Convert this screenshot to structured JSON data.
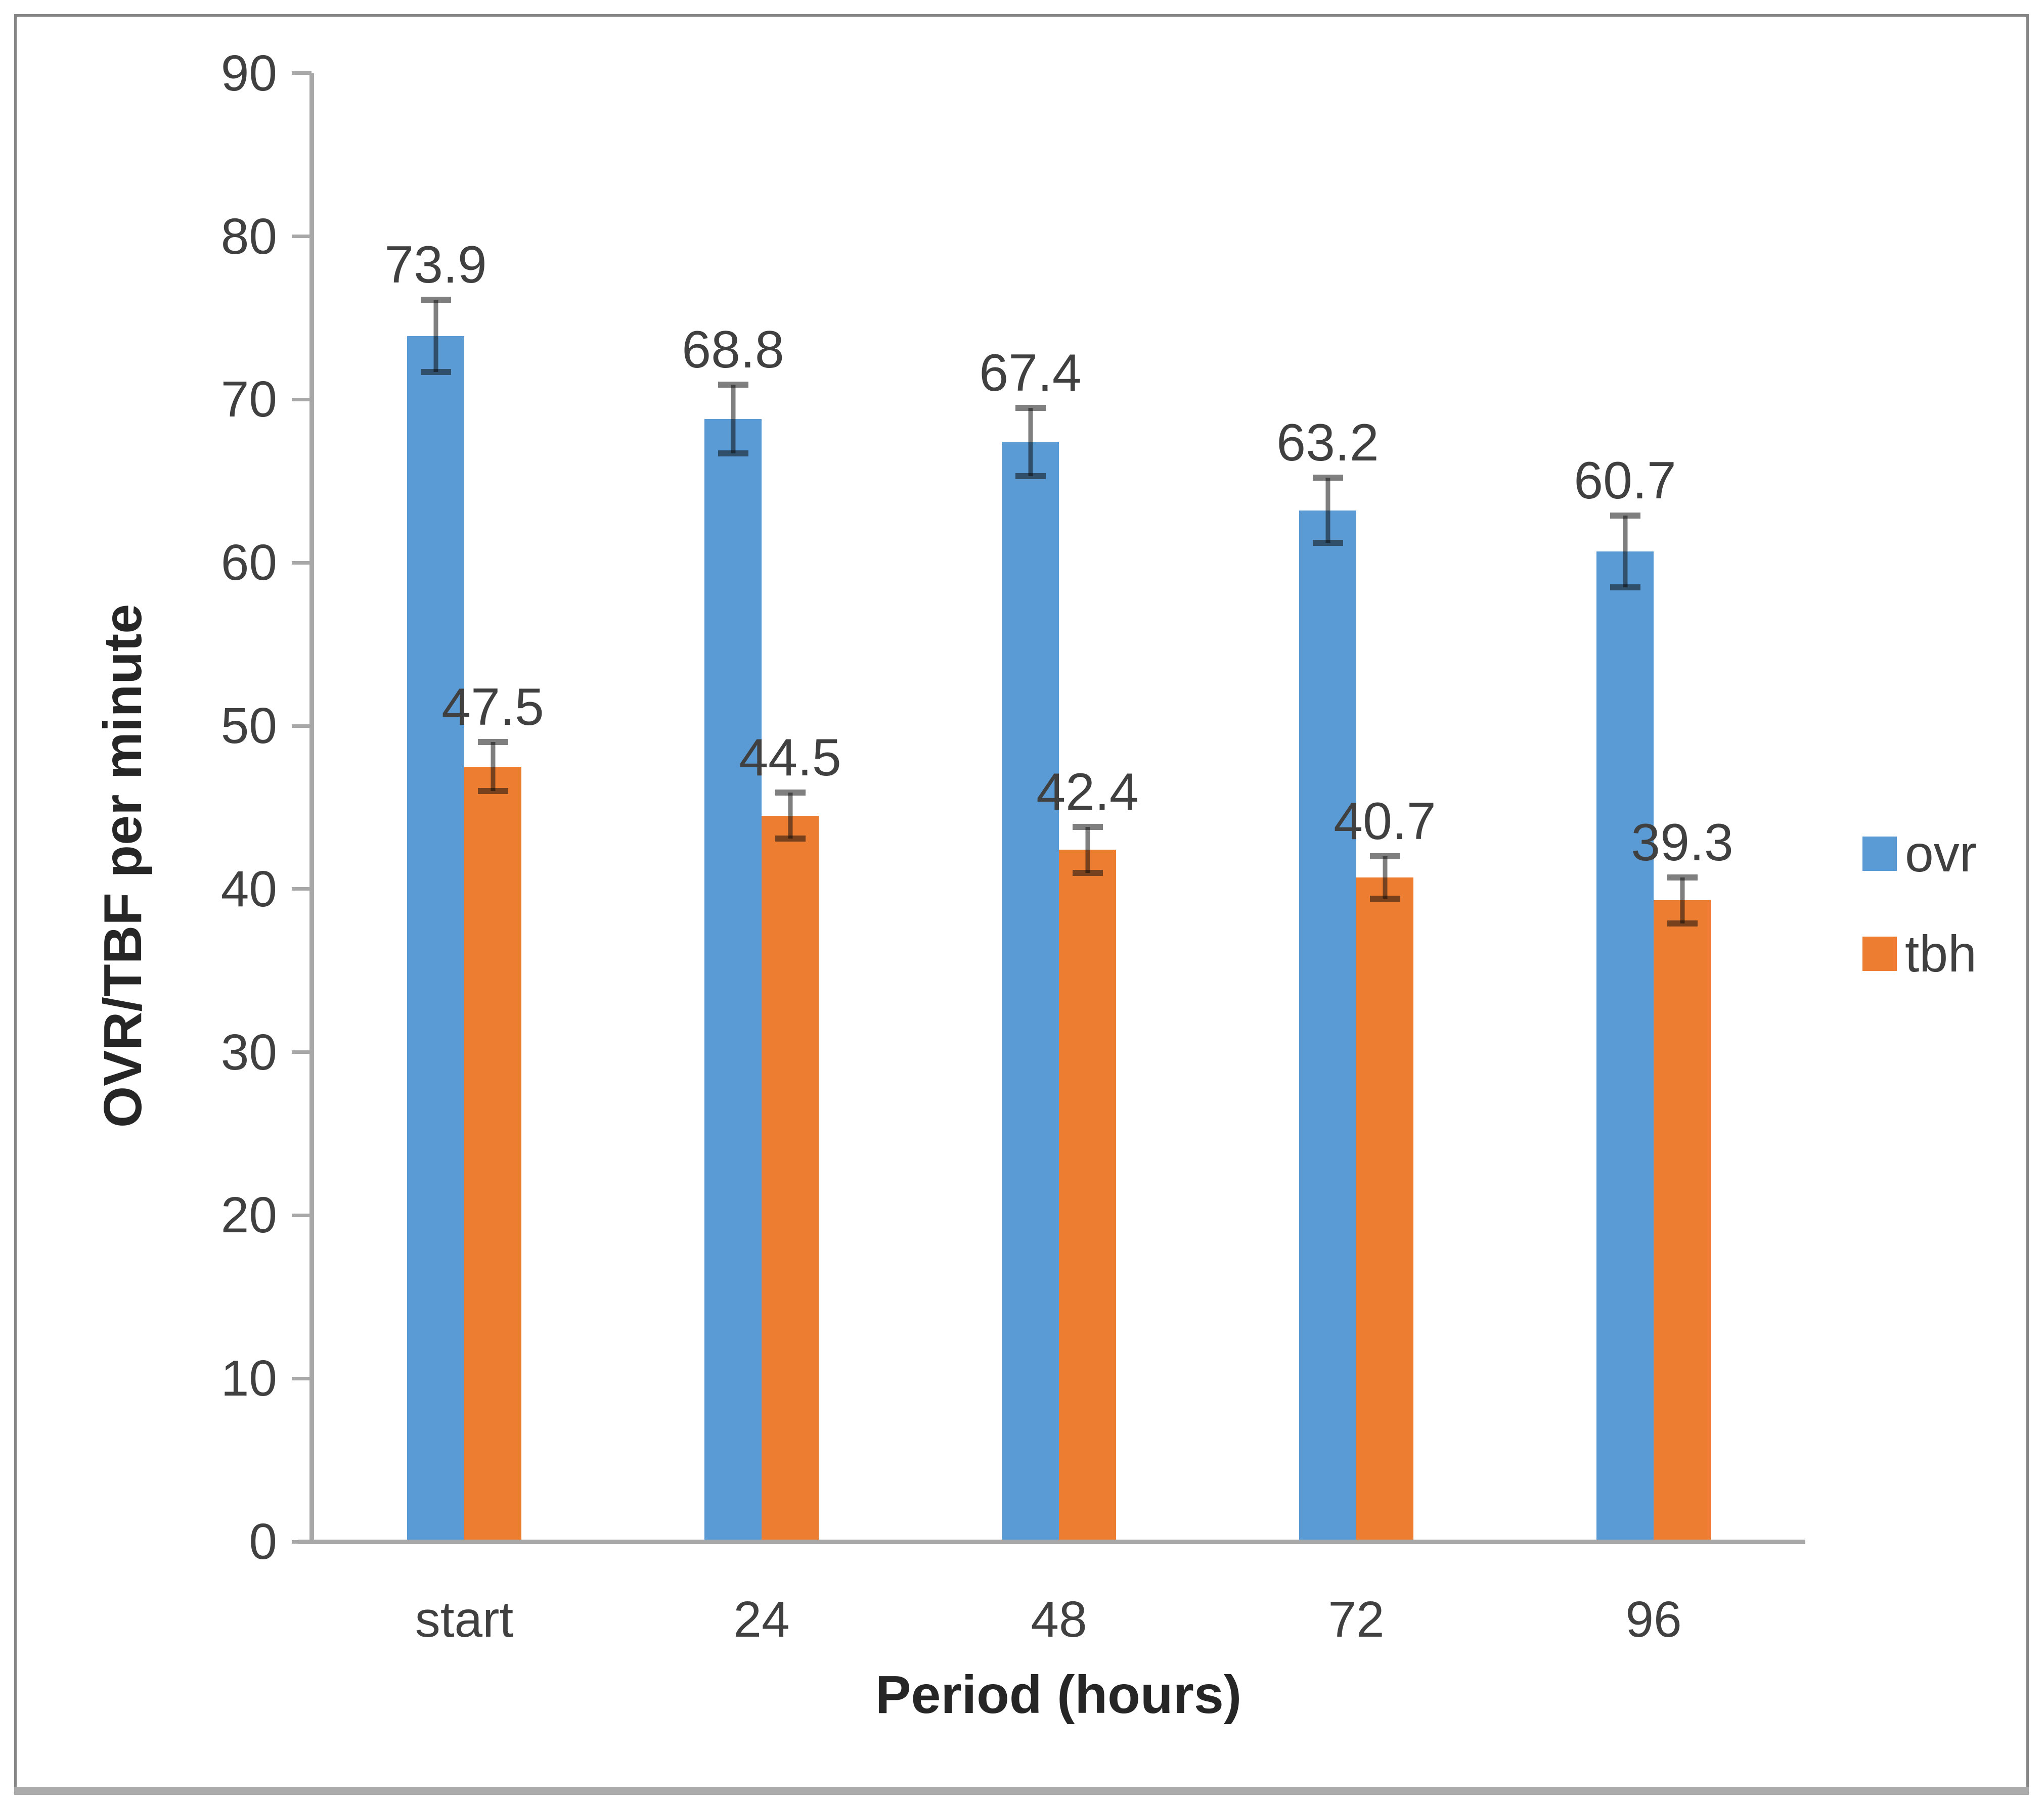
{
  "figure": {
    "background_color": "#ffffff",
    "frame_border_color": "#858585",
    "bottom_strip_color": "#ababab"
  },
  "chart_data": {
    "type": "bar",
    "title": "",
    "xlabel": "Period (hours)",
    "ylabel": "OVR/TBF per minute",
    "categories": [
      "start",
      "24",
      "48",
      "72",
      "96"
    ],
    "series": [
      {
        "name": "ovr",
        "color": "#5B9BD5",
        "values": [
          73.9,
          68.8,
          67.4,
          63.2,
          60.7
        ],
        "data_labels": [
          "73.9",
          "68.8",
          "67.4",
          "63.2",
          "60.7"
        ],
        "error_bars": [
          2.2,
          2.1,
          2.1,
          2.0,
          2.2
        ]
      },
      {
        "name": "tbh",
        "color": "#ED7D31",
        "values": [
          47.5,
          44.5,
          42.4,
          40.7,
          39.3
        ],
        "data_labels": [
          "47.5",
          "44.5",
          "42.4",
          "40.7",
          "39.3"
        ],
        "error_bars": [
          1.5,
          1.4,
          1.4,
          1.3,
          1.4
        ]
      }
    ],
    "ylim": [
      0,
      90
    ],
    "ytick_step": 10,
    "ytick_labels": [
      "0",
      "10",
      "20",
      "30",
      "40",
      "50",
      "60",
      "70",
      "80",
      "90"
    ],
    "grid": false,
    "legend": {
      "position": "right",
      "entries": [
        {
          "label": "ovr",
          "color": "#5B9BD5"
        },
        {
          "label": "tbh",
          "color": "#ED7D31"
        }
      ]
    },
    "error_bar_color": "rgba(10,10,10,0.52)",
    "axis_line_color": "#a8a8a8",
    "text_color": "#404040",
    "axis_title_color": "#262626"
  }
}
